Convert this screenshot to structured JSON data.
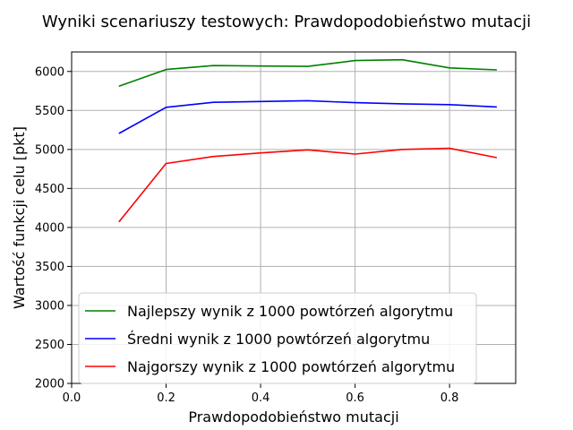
{
  "chart_data": {
    "type": "line",
    "title": "Wyniki scenariuszy testowych: Prawdopodobieństwo mutacji",
    "xlabel": "Prawdopodobieństwo mutacji",
    "ylabel": "Wartość funkcji celu [pkt]",
    "xlim": [
      0.0,
      0.94
    ],
    "ylim": [
      2000,
      6250
    ],
    "xticks": [
      0.0,
      0.2,
      0.4,
      0.6,
      0.8
    ],
    "xtick_labels": [
      "0.0",
      "0.2",
      "0.4",
      "0.6",
      "0.8"
    ],
    "yticks": [
      2000,
      2500,
      3000,
      3500,
      4000,
      4500,
      5000,
      5500,
      6000
    ],
    "ytick_labels": [
      "2000",
      "2500",
      "3000",
      "3500",
      "4000",
      "4500",
      "5000",
      "5500",
      "6000"
    ],
    "grid": true,
    "legend": "lower-left",
    "x": [
      0.1,
      0.2,
      0.3,
      0.4,
      0.5,
      0.6,
      0.7,
      0.8,
      0.9
    ],
    "series": [
      {
        "name": "Najlepszy wynik z 1000 powtórzeń algorytmu",
        "color": "#008000",
        "values": [
          5810,
          6025,
          6075,
          6070,
          6065,
          6140,
          6150,
          6045,
          6020
        ]
      },
      {
        "name": "Średni wynik z 1000 powtórzeń algorytmu",
        "color": "#0000ff",
        "values": [
          5205,
          5540,
          5605,
          5615,
          5625,
          5600,
          5585,
          5575,
          5545
        ]
      },
      {
        "name": "Najgorszy wynik z 1000 powtórzeń algorytmu",
        "color": "#ff0000",
        "values": [
          4070,
          4820,
          4910,
          4955,
          4995,
          4940,
          5000,
          5015,
          4895
        ]
      }
    ]
  }
}
